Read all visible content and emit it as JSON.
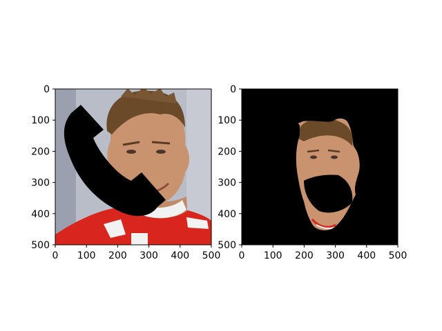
{
  "chart_data": [
    {
      "type": "image",
      "title": "",
      "xlabel": "",
      "ylabel": "",
      "xlim": [
        0,
        500
      ],
      "ylim": [
        500,
        0
      ],
      "y_inverted": true,
      "grid": false,
      "xticks": [
        0,
        100,
        200,
        300,
        400,
        500
      ],
      "yticks": [
        0,
        100,
        200,
        300,
        400,
        500
      ],
      "content": "face photo with black phone-handset occlusion"
    },
    {
      "type": "image",
      "title": "",
      "xlabel": "",
      "ylabel": "",
      "xlim": [
        0,
        500
      ],
      "ylim": [
        500,
        0
      ],
      "y_inverted": true,
      "grid": false,
      "xticks": [
        0,
        100,
        200,
        300,
        400,
        500
      ],
      "yticks": [
        0,
        100,
        200,
        300,
        400,
        500
      ],
      "content": "segmented face on black background"
    }
  ],
  "colors": {
    "background_left": "#b8bcc6",
    "skin": "#c8926e",
    "hair": "#6b4a2a",
    "jacket_red": "#d8261e",
    "collar_white": "#f2f2f2",
    "mask_black": "#000000"
  }
}
